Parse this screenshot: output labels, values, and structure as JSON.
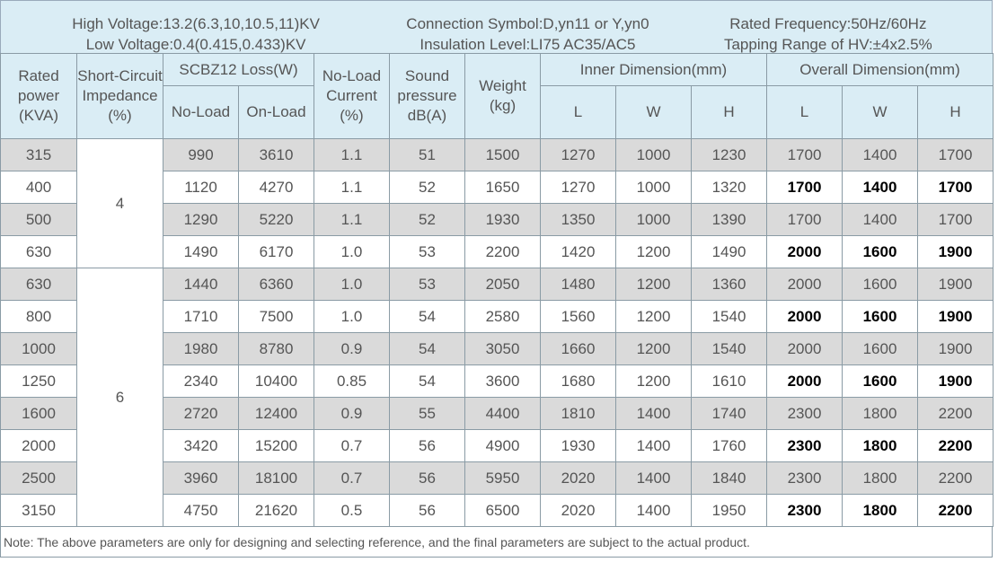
{
  "header": {
    "col1": [
      "High Voltage:13.2(6.3,10,10.5,11)KV",
      "Low Voltage:0.4(0.415,0.433)KV"
    ],
    "col2": [
      "Connection Symbol:D,yn11 or Y,yn0",
      "Insulation Level:LI75 AC35/AC5"
    ],
    "col3": [
      "Rated Frequency:50Hz/60Hz",
      "Tapping Range of HV:±4x2.5%"
    ]
  },
  "table": {
    "head": {
      "rated_power": "Rated power (KVA)",
      "impedance": "Short-Circuit Impedance (%)",
      "loss": "SCBZ12 Loss(W)",
      "no_load": "No-Load",
      "on_load": "On-Load",
      "current": "No-Load Current (%)",
      "sound": "Sound pressure dB(A)",
      "weight": "Weight (kg)",
      "inner": "Inner Dimension(mm)",
      "overall": "Overall Dimension(mm)",
      "inner_cols": [
        "L",
        "W",
        "H"
      ],
      "overall_cols": [
        "L",
        "W",
        "H"
      ]
    },
    "impedance": [
      "4",
      "6"
    ],
    "rows": [
      [
        "315",
        "990",
        "3610",
        "1.1",
        "51",
        "1500",
        "1270",
        "1000",
        "1230",
        "1700",
        "1400",
        "1700"
      ],
      [
        "400",
        "1120",
        "4270",
        "1.1",
        "52",
        "1650",
        "1270",
        "1000",
        "1320",
        "1700",
        "1400",
        "1700"
      ],
      [
        "500",
        "1290",
        "5220",
        "1.1",
        "52",
        "1930",
        "1350",
        "1000",
        "1390",
        "1700",
        "1400",
        "1700"
      ],
      [
        "630",
        "1490",
        "6170",
        "1.0",
        "53",
        "2200",
        "1420",
        "1200",
        "1490",
        "2000",
        "1600",
        "1900"
      ],
      [
        "630",
        "1440",
        "6360",
        "1.0",
        "53",
        "2050",
        "1480",
        "1200",
        "1360",
        "2000",
        "1600",
        "1900"
      ],
      [
        "800",
        "1710",
        "7500",
        "1.0",
        "54",
        "2580",
        "1560",
        "1200",
        "1540",
        "2000",
        "1600",
        "1900"
      ],
      [
        "1000",
        "1980",
        "8780",
        "0.9",
        "54",
        "3050",
        "1660",
        "1200",
        "1540",
        "2000",
        "1600",
        "1900"
      ],
      [
        "1250",
        "2340",
        "10400",
        "0.85",
        "54",
        "3600",
        "1680",
        "1200",
        "1610",
        "2000",
        "1600",
        "1900"
      ],
      [
        "1600",
        "2720",
        "12400",
        "0.9",
        "55",
        "4400",
        "1810",
        "1400",
        "1740",
        "2300",
        "1800",
        "2200"
      ],
      [
        "2000",
        "3420",
        "15200",
        "0.7",
        "56",
        "4900",
        "1930",
        "1400",
        "1760",
        "2300",
        "1800",
        "2200"
      ],
      [
        "2500",
        "3960",
        "18100",
        "0.7",
        "56",
        "5950",
        "2020",
        "1400",
        "1840",
        "2300",
        "1800",
        "2200"
      ],
      [
        "3150",
        "4750",
        "21620",
        "0.5",
        "56",
        "6500",
        "2020",
        "1400",
        "1950",
        "2300",
        "1800",
        "2200"
      ]
    ]
  },
  "note": "Note: The above parameters are only for designing and selecting  reference, and the final parameters are subject to the actual product."
}
